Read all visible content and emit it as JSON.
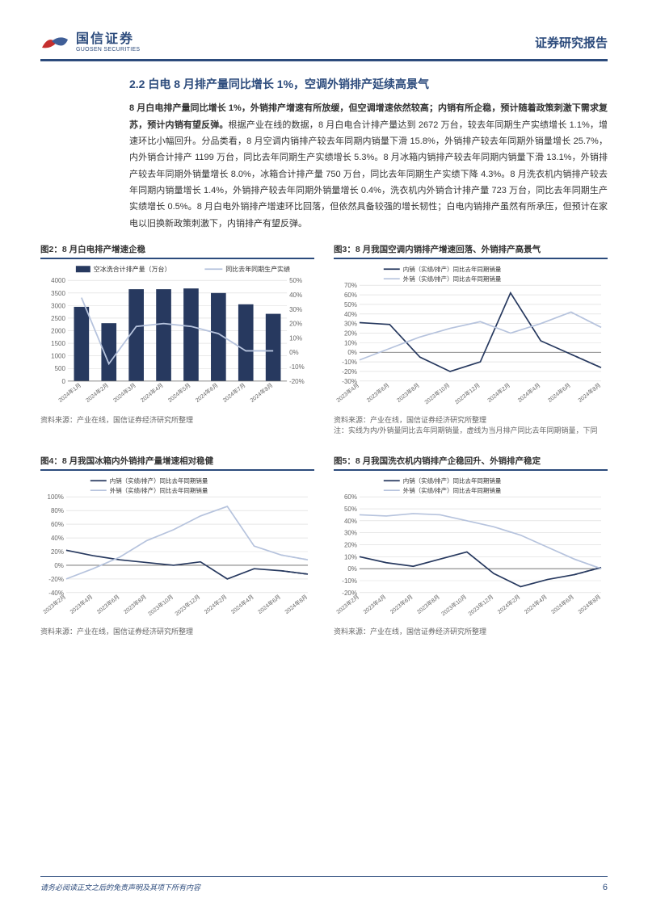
{
  "header": {
    "logo_cn": "国信证券",
    "logo_en": "GUOSEN SECURITIES",
    "logo_left_color": "#c52f2e",
    "logo_right_color": "#3f5e97",
    "report_type": "证券研究报告"
  },
  "section": {
    "title": "2.2 白电 8 月排产量同比增长 1%，空调外销排产延续高景气",
    "lead_bold": "8 月白电排产量同比增长 1%，外销排产增速有所放缓，但空调增速依然较高；内销有所企稳，预计随着政策刺激下需求复苏，预计内销有望反弹。",
    "body": "根据产业在线的数据，8 月白电合计排产量达到 2672 万台，较去年同期生产实绩增长 1.1%，增速环比小幅回升。分品类看，8 月空调内销排产较去年同期内销量下滑 15.8%，外销排产较去年同期外销量增长 25.7%，内外销合计排产 1199 万台，同比去年同期生产实绩增长 5.3%。8 月冰箱内销排产较去年同期内销量下滑 13.1%，外销排产较去年同期外销量增长 8.0%，冰箱合计排产量 750 万台，同比去年同期生产实绩下降 4.3%。8 月洗衣机内销排产较去年同期内销量增长 1.4%，外销排产较去年同期外销量增长 0.4%，洗衣机内外销合计排产量 723 万台，同比去年同期生产实绩增长 0.5%。8 月白电外销排产增速环比回落，但依然具备较强的增长韧性；白电内销排产虽然有所承压，但预计在家电以旧换新政策刺激下，内销排产有望反弹。"
  },
  "chart2": {
    "title": "图2：8 月白电排产增速企稳",
    "type": "bar+line",
    "legend_bar": "空冰洗合计排产量（万台）",
    "legend_line": "同比去年同期生产实绩",
    "categories": [
      "2024年1月",
      "2024年2月",
      "2024年3月",
      "2024年4月",
      "2024年5月",
      "2024年6月",
      "2024年7月",
      "2024年8月"
    ],
    "bar_values": [
      2950,
      2300,
      3650,
      3650,
      3680,
      3500,
      3050,
      2672
    ],
    "line_values": [
      38,
      -8,
      18,
      20,
      18,
      13,
      1,
      1
    ],
    "bar_color": "#27395f",
    "line_color": "#b6c3dd",
    "y_left": {
      "min": 0,
      "max": 4000,
      "step": 500
    },
    "y_right": {
      "min": -20,
      "max": 50,
      "step": 10
    },
    "grid_color": "#d9d9d9",
    "axis_color": "#666666",
    "label_fontsize": 8,
    "source": "资料来源：产业在线，国信证券经济研究所整理"
  },
  "chart3": {
    "title": "图3：8 月我国空调内销排产增速回落、外销排产高景气",
    "type": "line",
    "legend1": "内销（实绩/排产）同比去年同期销量",
    "legend2": "外销（实绩/排产）同比去年同期销量",
    "categories": [
      "2023年4月",
      "2023年6月",
      "2023年8月",
      "2023年10月",
      "2023年12月",
      "2024年2月",
      "2024年4月",
      "2024年6月",
      "2024年8月"
    ],
    "series1_solid": [
      31,
      29,
      -5,
      -20,
      -10,
      62,
      12,
      -2,
      -16
    ],
    "series1_dash": [
      null,
      null,
      null,
      null,
      null,
      null,
      null,
      -2,
      -16
    ],
    "series2_solid": [
      -8,
      4,
      16,
      25,
      32,
      20,
      30,
      42,
      26
    ],
    "series2_dash": [
      null,
      null,
      null,
      null,
      null,
      null,
      null,
      42,
      26
    ],
    "color1": "#27395f",
    "color2": "#b6c3dd",
    "y": {
      "min": -30,
      "max": 70,
      "step": 10
    },
    "grid_color": "#d9d9d9",
    "axis_color": "#666666",
    "source": "资料来源：产业在线，国信证券经济研究所整理",
    "note": "注：实线为内/外销量同比去年同期销量，虚线为当月排产同比去年同期销量，下同"
  },
  "chart4": {
    "title": "图4：8 月我国冰箱内外销排产量增速相对稳健",
    "type": "line",
    "legend1": "内销（实绩/排产）同比去年同期销量",
    "legend2": "外销（实绩/排产）同比去年同期销量",
    "categories": [
      "2023年2月",
      "2023年4月",
      "2023年6月",
      "2023年8月",
      "2023年10月",
      "2023年12月",
      "2024年2月",
      "2024年4月",
      "2024年6月",
      "2024年8月"
    ],
    "series1_solid": [
      22,
      14,
      8,
      4,
      0,
      5,
      -20,
      -5,
      -8,
      -13
    ],
    "series1_dash": [
      null,
      null,
      null,
      null,
      null,
      null,
      null,
      null,
      -8,
      -13
    ],
    "series2_solid": [
      -20,
      -5,
      12,
      36,
      52,
      72,
      86,
      28,
      15,
      8
    ],
    "series2_dash": [
      null,
      null,
      null,
      null,
      null,
      null,
      null,
      null,
      15,
      8
    ],
    "color1": "#27395f",
    "color2": "#b6c3dd",
    "y": {
      "min": -40,
      "max": 100,
      "step": 20
    },
    "grid_color": "#d9d9d9",
    "axis_color": "#666666",
    "source": "资料来源：产业在线，国信证券经济研究所整理"
  },
  "chart5": {
    "title": "图5：8 月我国洗衣机内销排产企稳回升、外销排产稳定",
    "type": "line",
    "legend1": "内销（实绩/排产）同比去年同期销量",
    "legend2": "外销（实绩/排产）同比去年同期销量",
    "categories": [
      "2023年2月",
      "2023年4月",
      "2023年6月",
      "2023年8月",
      "2023年10月",
      "2023年12月",
      "2024年2月",
      "2024年4月",
      "2024年6月",
      "2024年8月"
    ],
    "series1_solid": [
      10,
      5,
      2,
      8,
      14,
      -4,
      -15,
      -9,
      -5,
      1
    ],
    "series1_dash": [
      null,
      null,
      null,
      null,
      null,
      null,
      null,
      null,
      -5,
      1
    ],
    "series2_solid": [
      45,
      44,
      46,
      45,
      40,
      35,
      28,
      18,
      8,
      0
    ],
    "series2_dash": [
      null,
      null,
      null,
      null,
      null,
      null,
      null,
      null,
      8,
      0
    ],
    "color1": "#27395f",
    "color2": "#b6c3dd",
    "y": {
      "min": -20,
      "max": 60,
      "step": 10
    },
    "grid_color": "#d9d9d9",
    "axis_color": "#666666",
    "source": "资料来源：产业在线，国信证券经济研究所整理"
  },
  "footer": {
    "disclaimer": "请务必阅读正文之后的免责声明及其项下所有内容",
    "page": "6"
  }
}
